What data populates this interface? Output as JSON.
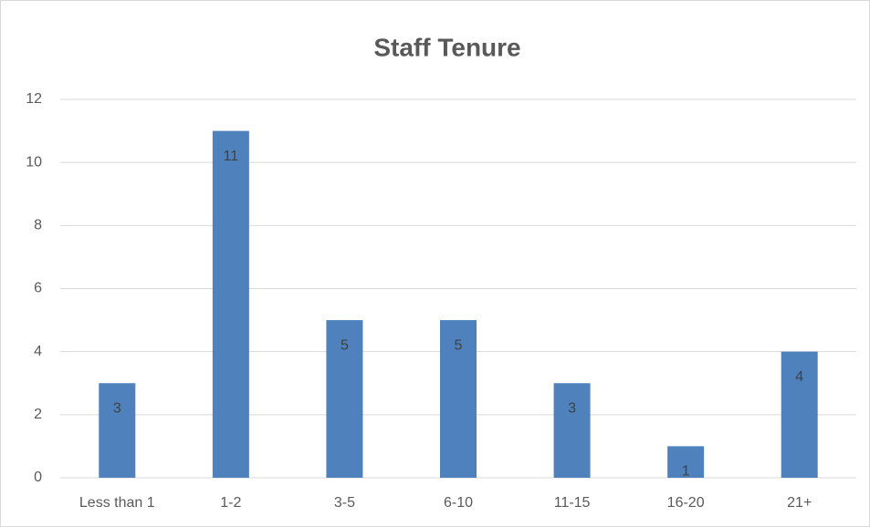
{
  "chart_data": {
    "type": "bar",
    "title": "Staff Tenure",
    "categories": [
      "Less than 1",
      "1-2",
      "3-5",
      "6-10",
      "11-15",
      "16-20",
      "21+"
    ],
    "values": [
      3,
      11,
      5,
      5,
      3,
      1,
      4
    ],
    "color": "#4f81bd",
    "ylim": [
      0,
      12
    ],
    "yticks": [
      0,
      2,
      4,
      6,
      8,
      10,
      12
    ],
    "grid": true,
    "data_labels": true
  }
}
